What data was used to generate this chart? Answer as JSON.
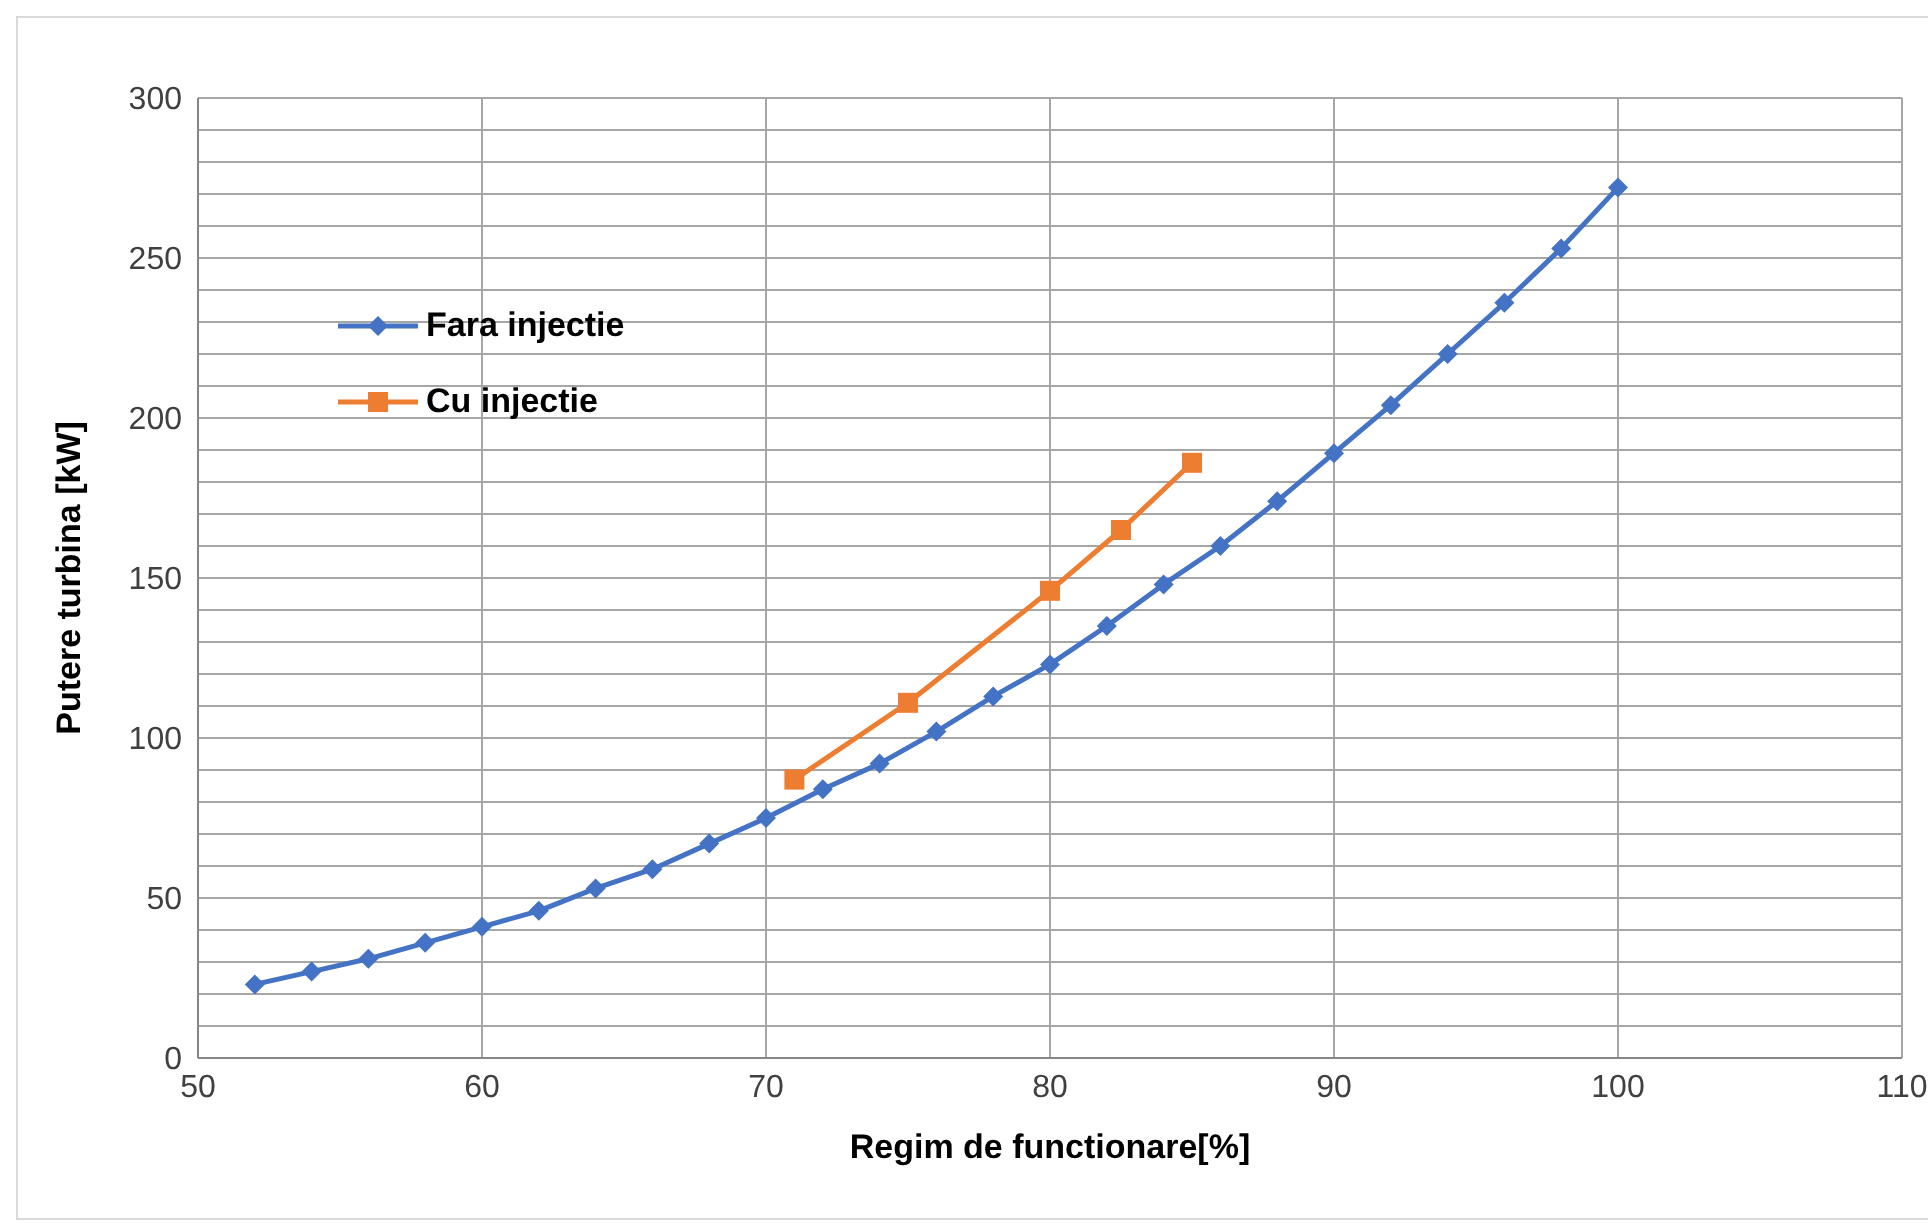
{
  "chart_data": {
    "type": "line",
    "xlabel": "Regim de functionare[%]",
    "ylabel": "Putere turbina [kW]",
    "xlim": [
      50,
      110
    ],
    "xticks": [
      50,
      60,
      70,
      80,
      90,
      100,
      110
    ],
    "ylim": [
      0,
      300
    ],
    "yticks": [
      0,
      {
        "value": 10,
        "label": null
      },
      {
        "value": 20,
        "label": null
      },
      {
        "value": 30,
        "label": null
      },
      {
        "value": 40,
        "label": null
      },
      50,
      {
        "value": 60,
        "label": null
      },
      {
        "value": 70,
        "label": null
      },
      {
        "value": 80,
        "label": null
      },
      {
        "value": 90,
        "label": null
      },
      100,
      {
        "value": 110,
        "label": null
      },
      {
        "value": 120,
        "label": null
      },
      {
        "value": 130,
        "label": null
      },
      {
        "value": 140,
        "label": null
      },
      150,
      {
        "value": 160,
        "label": null
      },
      {
        "value": 170,
        "label": null
      },
      {
        "value": 180,
        "label": null
      },
      {
        "value": 190,
        "label": null
      },
      200,
      {
        "value": 210,
        "label": null
      },
      {
        "value": 220,
        "label": null
      },
      {
        "value": 230,
        "label": null
      },
      {
        "value": 240,
        "label": null
      },
      250,
      {
        "value": 260,
        "label": null
      },
      {
        "value": 270,
        "label": null
      },
      {
        "value": 280,
        "label": null
      },
      {
        "value": 290,
        "label": null
      },
      300
    ],
    "grid": true,
    "legend": "top left",
    "line_style": "solid",
    "series": [
      {
        "name": "Fara injectie",
        "color": "#4472c4",
        "marker": "diamond",
        "x": [
          52,
          54,
          56,
          58,
          60,
          62,
          64,
          66,
          68,
          70,
          72,
          74,
          76,
          78,
          80,
          82,
          84,
          86,
          88,
          90,
          92,
          94,
          96,
          98,
          100
        ],
        "values": [
          23,
          27,
          31,
          36,
          41,
          46,
          53,
          59,
          67,
          75,
          84,
          92,
          102,
          113,
          123,
          135,
          148,
          160,
          174,
          189,
          204,
          220,
          236,
          253,
          272
        ]
      },
      {
        "name": "Cu injectie",
        "color": "#ed7d31",
        "marker": "square",
        "x": [
          71,
          75,
          80,
          82.5,
          85
        ],
        "values": [
          87,
          111,
          146,
          165,
          186
        ]
      }
    ]
  }
}
